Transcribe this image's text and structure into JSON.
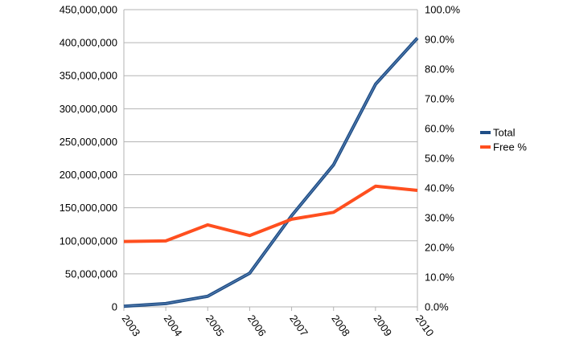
{
  "chart_data": {
    "type": "line",
    "title": "",
    "xlabel": "",
    "ylabel": "",
    "y2label": "",
    "categories": [
      "2003",
      "2004",
      "2005",
      "2006",
      "2007",
      "2008",
      "2009",
      "2010"
    ],
    "series": [
      {
        "name": "Total",
        "axis": "left",
        "color": "#1f4e86",
        "values": [
          1000000,
          5000000,
          16000000,
          51000000,
          138000000,
          215000000,
          337000000,
          407000000
        ]
      },
      {
        "name": "Free %",
        "axis": "right",
        "color": "#ff4f1f",
        "values": [
          22.0,
          22.2,
          27.6,
          24.0,
          29.5,
          31.8,
          40.6,
          39.2
        ]
      }
    ],
    "ylim": [
      0,
      450000000
    ],
    "y_ticks": [
      "0",
      "50,000,000",
      "100,000,000",
      "150,000,000",
      "200,000,000",
      "250,000,000",
      "300,000,000",
      "350,000,000",
      "400,000,000",
      "450,000,000"
    ],
    "y2lim": [
      0,
      100
    ],
    "y2_ticks": [
      "0.0%",
      "10.0%",
      "20.0%",
      "30.0%",
      "40.0%",
      "50.0%",
      "60.0%",
      "70.0%",
      "80.0%",
      "90.0%",
      "100.0%"
    ],
    "grid": true,
    "legend": "right"
  }
}
